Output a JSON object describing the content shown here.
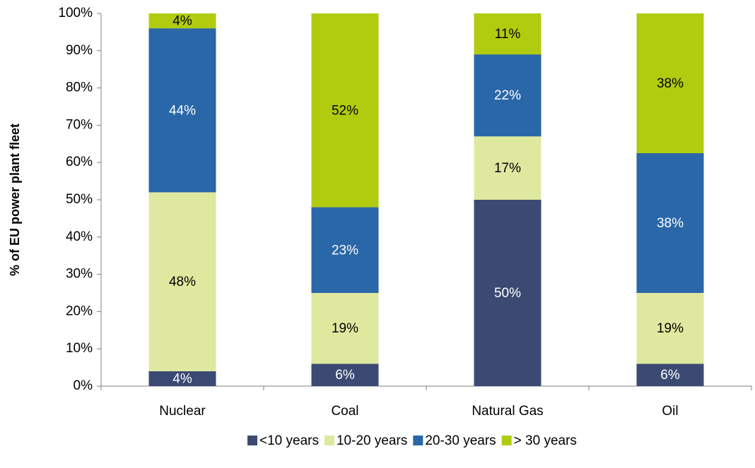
{
  "chart_data": {
    "type": "stacked_bar",
    "y_axis_label": "% of EU power plant fleet",
    "categories": [
      "Nuclear",
      "Coal",
      "Natural Gas",
      "Oil"
    ],
    "series": [
      {
        "name": "<10 years",
        "color": "#3b4a72",
        "values": [
          4,
          6,
          50,
          6
        ],
        "value_labels": [
          "4%",
          "6%",
          "50%",
          "6%"
        ]
      },
      {
        "name": "10-20 years",
        "color": "#dfe89f",
        "values": [
          48,
          19,
          17,
          19
        ],
        "value_labels": [
          "48%",
          "19%",
          "17%",
          "19%"
        ]
      },
      {
        "name": "20-30 years",
        "color": "#2a67a8",
        "values": [
          44,
          23,
          22,
          37.5
        ],
        "value_labels": [
          "44%",
          "23%",
          "22%",
          "38%"
        ]
      },
      {
        "name": "> 30 years",
        "color": "#b1cc0e",
        "values": [
          4,
          52,
          11,
          37.5
        ],
        "value_labels": [
          "4%",
          "52%",
          "11%",
          "38%"
        ]
      }
    ],
    "ylim": [
      0,
      100
    ],
    "yticks": [
      {
        "value": 0,
        "label": "0%"
      },
      {
        "value": 10,
        "label": "10%"
      },
      {
        "value": 20,
        "label": "20%"
      },
      {
        "value": 30,
        "label": "30%"
      },
      {
        "value": 40,
        "label": "40%"
      },
      {
        "value": 50,
        "label": "50%"
      },
      {
        "value": 60,
        "label": "60%"
      },
      {
        "value": 70,
        "label": "70%"
      },
      {
        "value": 80,
        "label": "80%"
      },
      {
        "value": 90,
        "label": "90%"
      },
      {
        "value": 100,
        "label": "100%"
      }
    ],
    "legend": "bottom"
  }
}
